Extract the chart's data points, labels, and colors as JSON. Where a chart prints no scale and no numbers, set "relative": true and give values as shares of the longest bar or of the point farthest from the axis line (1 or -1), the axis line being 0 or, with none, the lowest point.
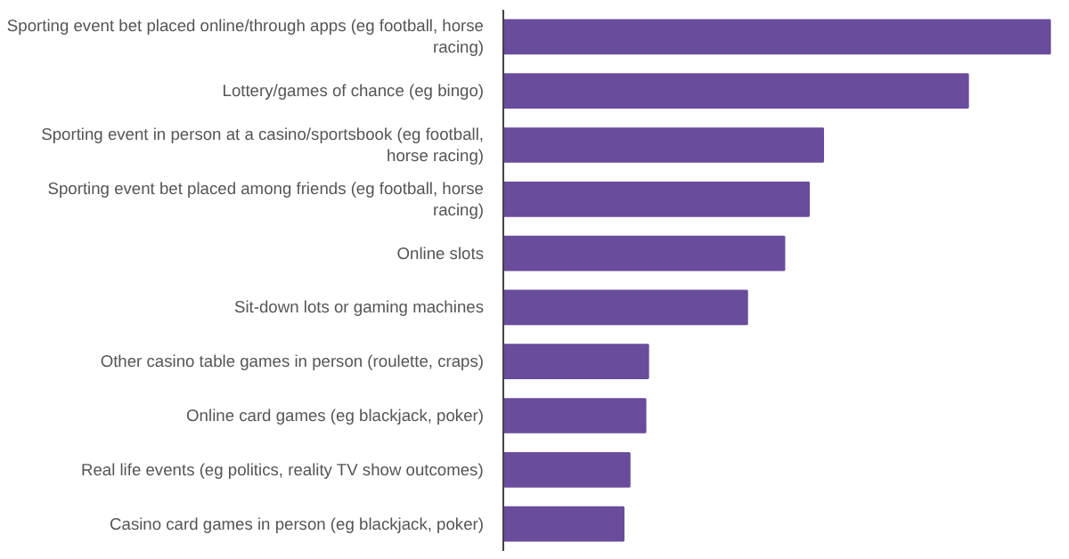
{
  "chart_data": {
    "type": "bar",
    "orientation": "horizontal",
    "relative": true,
    "categories": [
      "Sporting event bet placed online/through apps (eg football, horse racing)",
      "Lottery/games of chance (eg bingo)",
      "Sporting event in person at a casino/sportsbook (eg football, horse racing)",
      "Sporting event bet placed among friends (eg football, horse racing)",
      "Online slots",
      "Sit-down lots or gaming machines",
      "Other casino table games in person (roulette, craps)",
      "Online card games (eg blackjack, poker)",
      "Real life events (eg politics, reality TV show outcomes)",
      "Casino card games in person (eg blackjack, poker)"
    ],
    "values": [
      1,
      0.85,
      0.585,
      0.559,
      0.514,
      0.446,
      0.265,
      0.26,
      0.231,
      0.22
    ],
    "color": "#6a4c9c",
    "grid": false
  }
}
